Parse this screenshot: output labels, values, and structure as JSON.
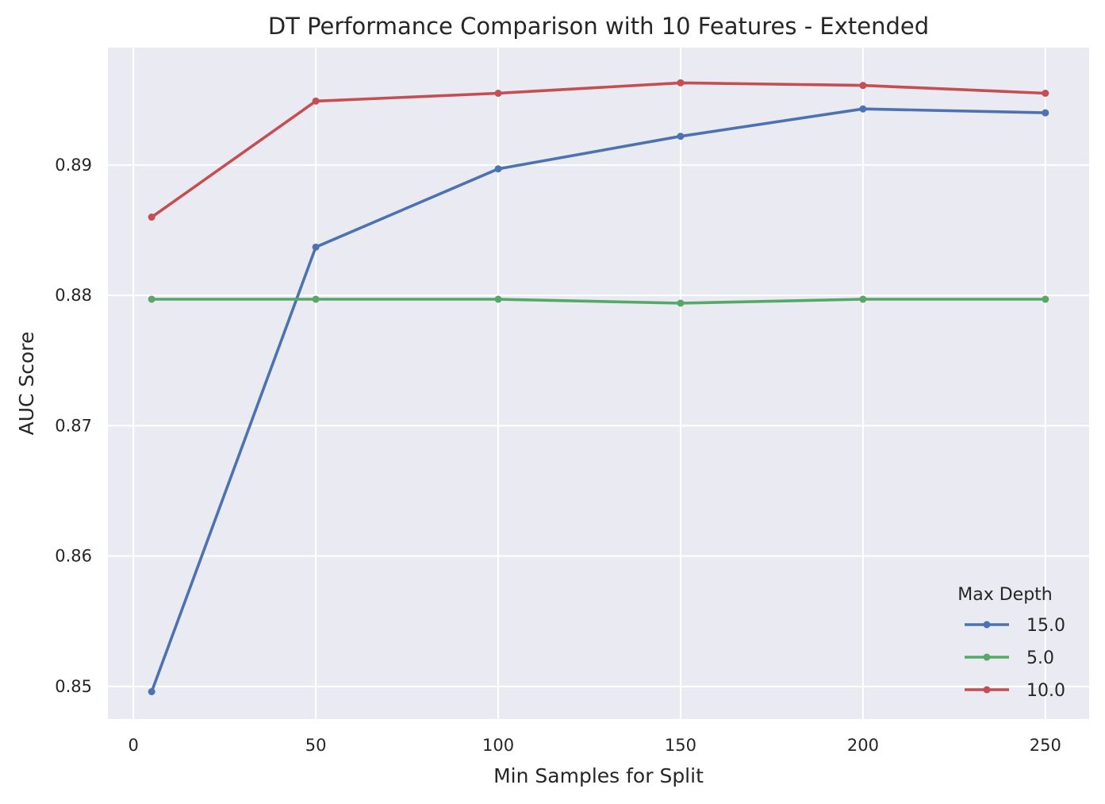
{
  "chart_data": {
    "type": "line",
    "title": "DT Performance Comparison with 10 Features - Extended",
    "xlabel": "Min Samples for Split",
    "ylabel": "AUC Score",
    "xlim": [
      -7,
      262
    ],
    "ylim": [
      0.8475,
      0.899
    ],
    "xticks": [
      0,
      50,
      100,
      150,
      200,
      250
    ],
    "xtick_labels": [
      "0",
      "50",
      "100",
      "150",
      "200",
      "250"
    ],
    "yticks": [
      0.85,
      0.86,
      0.87,
      0.88,
      0.89
    ],
    "ytick_labels": [
      "0.85",
      "0.86",
      "0.87",
      "0.88",
      "0.89"
    ],
    "grid": true,
    "background": "#eaeaf2",
    "legend": {
      "title": "Max Depth",
      "placement": "lower-right"
    },
    "x": [
      5,
      50,
      100,
      150,
      200,
      250
    ],
    "series": [
      {
        "name": "15.0",
        "color": "#4c72b0",
        "values": [
          0.8496,
          0.8837,
          0.8897,
          0.8922,
          0.8943,
          0.894
        ]
      },
      {
        "name": "5.0",
        "color": "#55a868",
        "values": [
          0.8797,
          0.8797,
          0.8797,
          0.8794,
          0.8797,
          0.8797
        ]
      },
      {
        "name": "10.0",
        "color": "#c44e52",
        "values": [
          0.886,
          0.8949,
          0.8955,
          0.8963,
          0.8961,
          0.8955
        ]
      }
    ]
  }
}
